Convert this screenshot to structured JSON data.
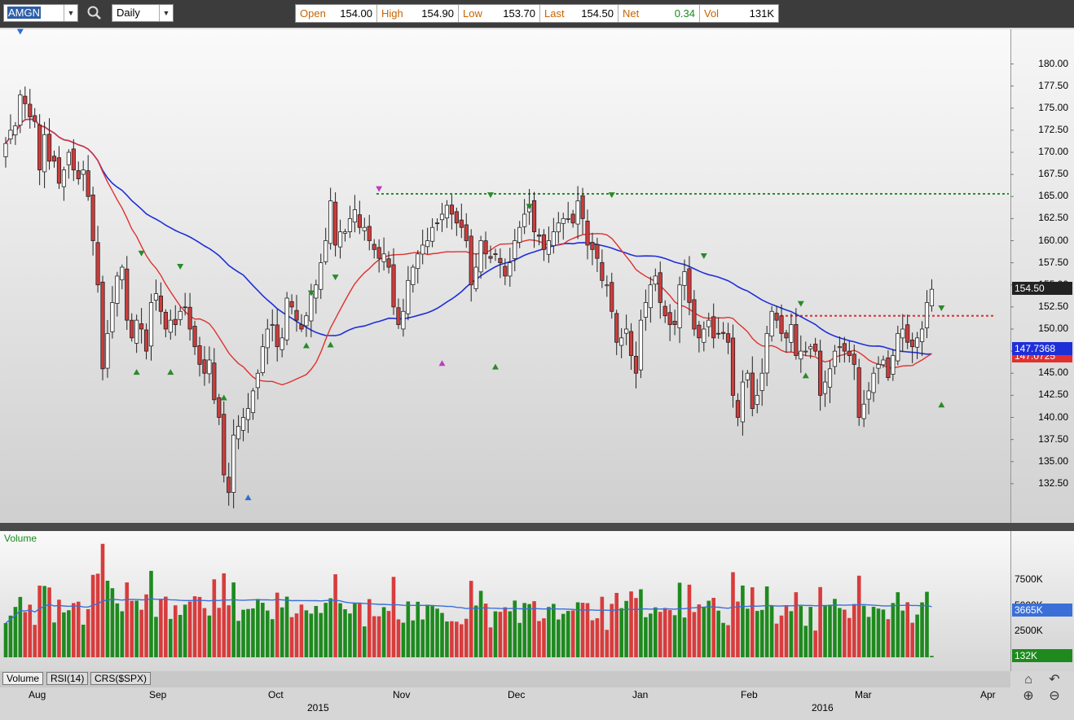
{
  "toolbar": {
    "symbol": "AMGN",
    "period": "Daily",
    "quote": [
      {
        "label": "Open",
        "value": "154.00"
      },
      {
        "label": "High",
        "value": "154.90"
      },
      {
        "label": "Low",
        "value": "153.70"
      },
      {
        "label": "Last",
        "value": "154.50"
      },
      {
        "label": "Net",
        "value": "0.34"
      },
      {
        "label": "Vol",
        "value": "131K"
      }
    ]
  },
  "colors": {
    "up": "#ffffff",
    "down": "#cd3c3c",
    "sma_fast": "#e03030",
    "sma_slow": "#1f2fd8",
    "volume_up": "#1e8a1e",
    "volume_down": "#d83c3c",
    "volume_ma": "#3a6fd8",
    "resistance": "#2e8b2e",
    "support": "#e03030"
  },
  "price_badges": {
    "last": "154.50",
    "sma_slow": "147.7368",
    "sma_fast": "147.0725"
  },
  "volume_panel": {
    "title": "Volume",
    "current_avg_badge": "3665K",
    "current_volume_badge": "132K"
  },
  "tabs": [
    "Volume",
    "RSI(14)",
    "CRS($SPX)"
  ],
  "x_axis": {
    "months": [
      "Aug",
      "Sep",
      "Oct",
      "Nov",
      "Dec",
      "Jan",
      "Feb",
      "Mar",
      "Apr"
    ],
    "years": [
      "2015",
      "2016"
    ]
  },
  "chart_data": [
    {
      "type": "candlestick",
      "symbol": "AMGN",
      "ylim": [
        130,
        185
      ],
      "yticks": [
        "132.50",
        "135.00",
        "137.50",
        "140.00",
        "142.50",
        "145.00",
        "147.50",
        "150.00",
        "152.50",
        "155.00",
        "157.50",
        "160.00",
        "162.50",
        "165.00",
        "167.50",
        "170.00",
        "172.50",
        "175.00",
        "177.50",
        "180.00"
      ],
      "close": [
        171,
        172.5,
        173,
        176.5,
        175.5,
        174,
        173.5,
        168,
        172,
        169,
        169,
        166.5,
        168,
        170,
        168,
        167,
        168,
        165,
        160,
        155,
        145.5,
        149.5,
        153,
        156,
        157,
        151,
        149,
        151,
        150,
        147.5,
        153,
        154,
        152,
        150,
        151,
        150.5,
        152,
        152.5,
        150,
        148,
        146,
        145,
        146.5,
        142,
        140,
        133.5,
        131.5,
        138,
        139,
        140,
        141,
        143,
        145,
        148,
        150,
        150.5,
        148,
        149,
        153.5,
        152.5,
        151,
        150,
        151.5,
        154,
        155,
        157.5,
        160,
        164.5,
        159.5,
        161,
        161,
        162.5,
        163.5,
        161.5,
        161.5,
        160,
        159,
        158,
        158.5,
        157,
        152.5,
        150.5,
        152,
        155.5,
        157,
        158.5,
        159.5,
        160,
        161.5,
        162,
        163,
        164,
        163,
        162,
        161.5,
        160,
        155,
        157,
        160,
        158.5,
        158,
        158.5,
        157.5,
        156,
        157.5,
        160,
        161.5,
        163,
        164,
        161,
        160.5,
        159,
        160,
        161,
        162,
        162.5,
        162.5,
        162,
        164.5,
        162.5,
        159.5,
        159,
        158,
        155.5,
        155,
        152,
        148.5,
        149,
        150,
        147,
        145,
        151,
        153,
        155,
        156,
        153,
        151.5,
        150.5,
        150.5,
        155,
        156.5,
        153,
        150,
        149,
        150,
        151,
        149,
        149.5,
        149.5,
        148.5,
        142.5,
        140,
        144,
        145,
        141,
        142.5,
        145,
        149.5,
        152,
        151,
        149.5,
        149,
        150.5,
        147,
        147.5,
        147.5,
        148,
        147.5,
        142.5,
        144,
        145.5,
        147.5,
        148,
        147.5,
        147,
        146,
        140,
        141.5,
        143,
        145,
        146,
        146.5,
        144.5,
        147,
        149.5,
        150,
        148.5,
        148,
        149,
        150,
        153,
        154.5
      ],
      "marker_peak_high": "183.5",
      "marker_peak_low": "131.0",
      "resistance_level": 165.3,
      "support_level": 151.5
    },
    {
      "type": "bar",
      "series": "Volume",
      "ylim": [
        0,
        12000
      ],
      "yticks": [
        "2500K",
        "5000K",
        "7500K"
      ]
    }
  ]
}
